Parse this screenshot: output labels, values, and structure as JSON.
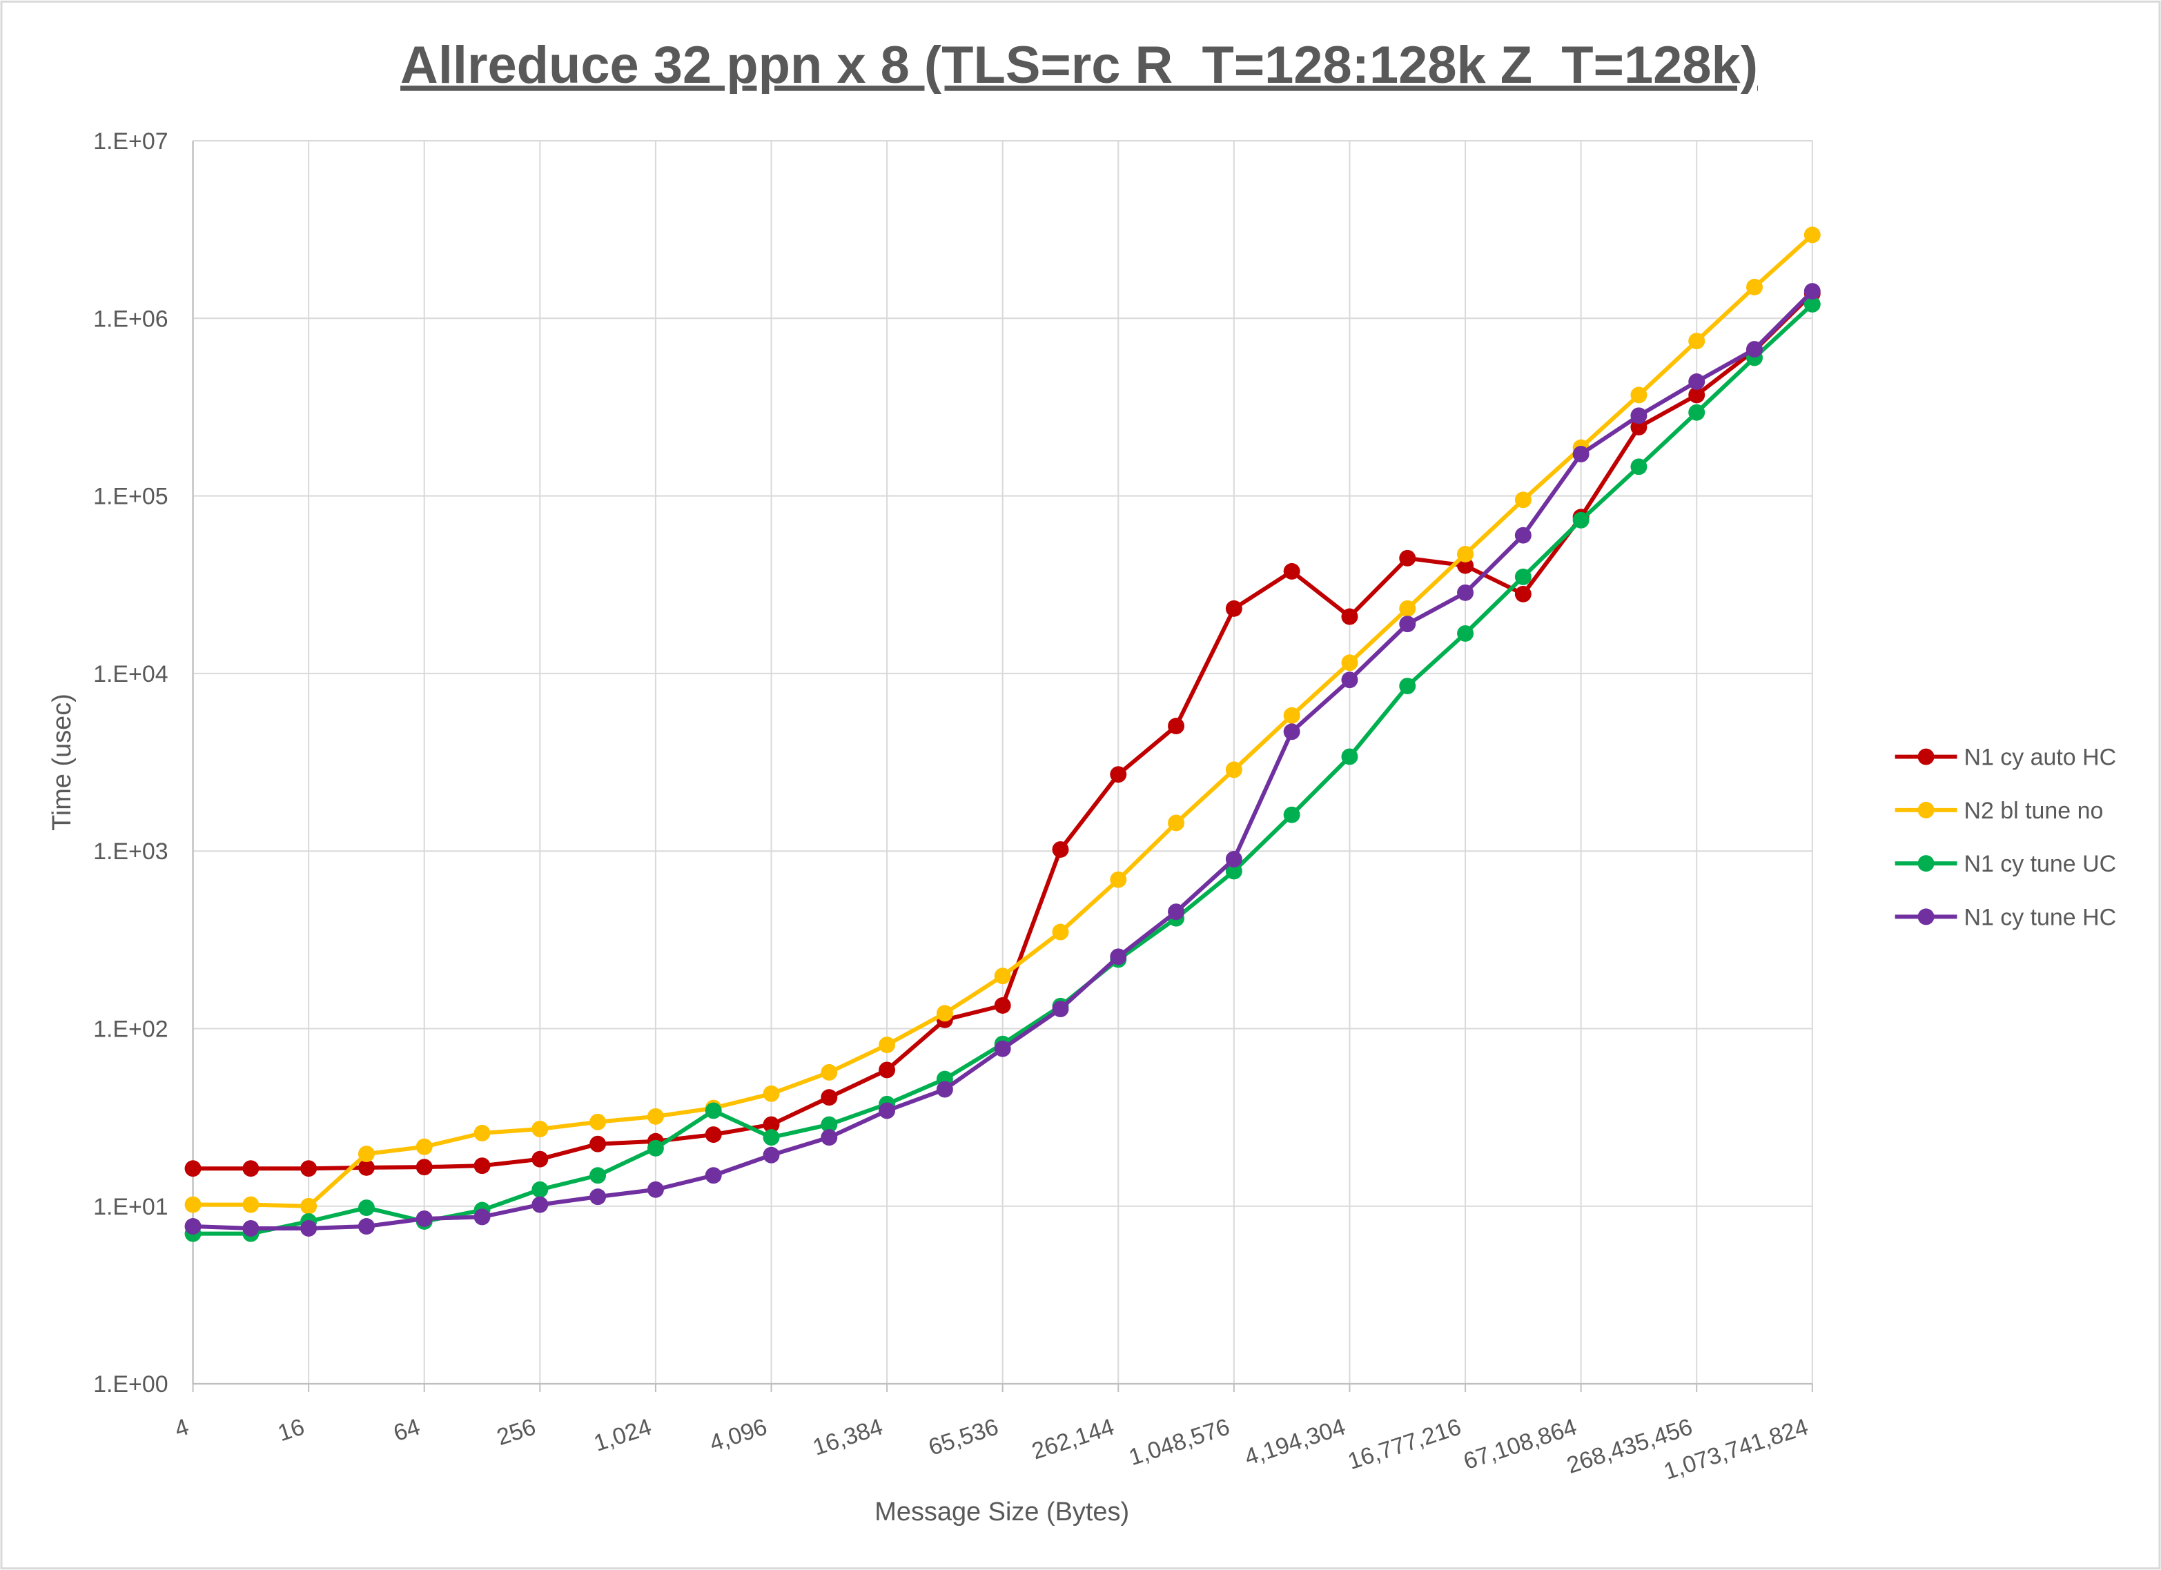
{
  "chart_data": {
    "type": "line",
    "title": "Allreduce 32 ppn x 8 (TLS=rc R_T=128:128k Z_T=128k)",
    "x_label": "Message Size (Bytes)",
    "y_label": "Time (usec)",
    "categories": [
      "4",
      null,
      "16",
      null,
      "64",
      null,
      "256",
      null,
      "1,024",
      null,
      "4,096",
      null,
      "16,384",
      null,
      "65,536",
      null,
      "262,144",
      null,
      "1,048,576",
      null,
      "4,194,304",
      null,
      "16,777,216",
      null,
      "67,108,864",
      null,
      "268,435,456",
      null,
      "1,073,741,824"
    ],
    "y_scale": "log",
    "ylim": [
      1,
      10000000
    ],
    "yticks": [
      {
        "value": 1,
        "label": "1.E+00"
      },
      {
        "value": 10,
        "label": "1.E+01"
      },
      {
        "value": 100,
        "label": "1.E+02"
      },
      {
        "value": 1000,
        "label": "1.E+03"
      },
      {
        "value": 10000,
        "label": "1.E+04"
      },
      {
        "value": 100000,
        "label": "1.E+05"
      },
      {
        "value": 1000000,
        "label": "1.E+06"
      },
      {
        "value": 10000000,
        "label": "1.E+07"
      }
    ],
    "grid": true,
    "legend": "right",
    "series": [
      {
        "name": "N1 cy auto HC",
        "color": "#c00000",
        "values": [
          16.3,
          16.3,
          16.3,
          16.5,
          16.6,
          16.9,
          18.4,
          22.4,
          23.2,
          25.3,
          28.8,
          41,
          58.5,
          112,
          135,
          1020,
          2700,
          5060,
          23200,
          37600,
          20900,
          44600,
          40500,
          28000,
          76000,
          244000,
          370000,
          660000,
          1380000
        ]
      },
      {
        "name": "N2 bl tune no",
        "color": "#ffc000",
        "values": [
          10.2,
          10.2,
          10.0,
          19.7,
          21.6,
          25.8,
          27.2,
          29.8,
          32,
          35.7,
          43,
          56.7,
          81,
          122,
          198,
          350,
          690,
          1440,
          2870,
          5800,
          11500,
          23200,
          47000,
          95000,
          187000,
          370000,
          745000,
          1500000,
          2950000
        ]
      },
      {
        "name": "N1 cy tune UC",
        "color": "#00b050",
        "values": [
          7.0,
          7.0,
          8.2,
          9.8,
          8.2,
          9.5,
          12.4,
          14.9,
          21.2,
          34.5,
          24.4,
          28.8,
          37.6,
          52,
          82,
          134,
          245,
          418,
          770,
          1600,
          3400,
          8500,
          16800,
          35000,
          73000,
          146000,
          295000,
          600000,
          1200000
        ]
      },
      {
        "name": "N1 cy tune HC",
        "color": "#7030a0",
        "values": [
          7.7,
          7.5,
          7.5,
          7.7,
          8.5,
          8.7,
          10.2,
          11.3,
          12.4,
          14.9,
          19.4,
          24.4,
          34.5,
          45.5,
          77,
          129,
          254,
          455,
          900,
          4700,
          9200,
          19000,
          28500,
          60000,
          172000,
          283000,
          440000,
          670000,
          1420000
        ]
      }
    ]
  }
}
